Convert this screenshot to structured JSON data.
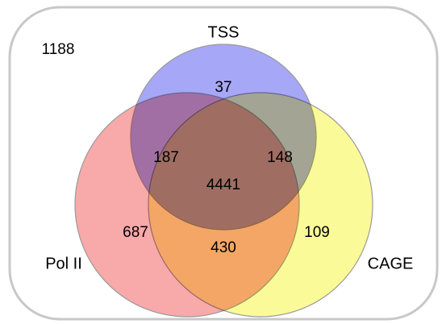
{
  "diagram": {
    "type": "venn-3",
    "colors": {
      "frame_stroke": "#c8c8c8",
      "tss": "#a7a7f7",
      "pol2": "#f8a9a9",
      "cage": "#fbfa99",
      "circle_stroke": "#9a9a9a"
    },
    "sets": {
      "tss": "TSS",
      "pol2": "Pol II",
      "cage": "CAGE"
    },
    "counts": {
      "outside": "1188",
      "tss_only": "37",
      "pol2_tss": "187",
      "tss_cage": "148",
      "all": "4441",
      "pol2_only": "687",
      "cage_only": "109",
      "pol2_cage": "430"
    }
  }
}
